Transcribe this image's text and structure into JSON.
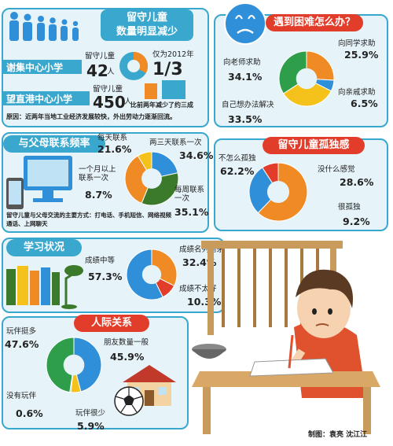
{
  "colors": {
    "blue": "#2f8fd8",
    "green": "#2f9e4a",
    "orange": "#f08a24",
    "red": "#e23d2a",
    "yellow": "#f5c21b",
    "darkgreen": "#3a7a2a",
    "panel": "#e6f3f9"
  },
  "section1": {
    "title_line1": "留守儿童",
    "title_line2": "数量明显减少",
    "school1": "谢集中心小学",
    "school1_label": "留守儿童",
    "school1_count": "42",
    "school1_unit": "人",
    "ratio_label": "仅为2012年",
    "ratio_value": "1/3",
    "school2": "望直港中心小学",
    "school2_label": "留守儿童",
    "school2_count": "450",
    "school2_unit": "人",
    "school2_note": "比前两年减少了约三成",
    "reason": "原因：近两年当地工业经济发展较快，外出劳动力逐渐回流。"
  },
  "chart_data": [
    {
      "type": "pie",
      "title": "遇到困难怎么办？",
      "labels": [
        "向同学求助",
        "向亲戚求助",
        "自己想办法解决",
        "向老师求助"
      ],
      "values": [
        25.9,
        6.5,
        33.5,
        34.1
      ]
    },
    {
      "type": "pie",
      "title": "与父母联系频率",
      "labels": [
        "每天联系",
        "两三天联系一次",
        "每周联系一次",
        "一个月以上联系一次"
      ],
      "values": [
        21.6,
        34.6,
        35.1,
        8.7
      ],
      "note": "留守儿童与父母交流的主要方式：打电话、手机短信、网络视频通话、上网聊天"
    },
    {
      "type": "pie",
      "title": "留守儿童孤独感",
      "labels": [
        "不怎么孤独",
        "没什么感觉",
        "很孤独"
      ],
      "values": [
        62.2,
        28.6,
        9.2
      ]
    },
    {
      "type": "pie",
      "title": "学习状况",
      "labels": [
        "成绩名列前茅",
        "成绩不太好",
        "成绩中等"
      ],
      "values": [
        32.4,
        10.3,
        57.3
      ]
    },
    {
      "type": "pie",
      "title": "人际关系",
      "labels": [
        "朋友数量一般",
        "玩伴很少",
        "没有玩伴",
        "玩伴挺多"
      ],
      "values": [
        45.9,
        5.9,
        0.6,
        47.6
      ]
    }
  ],
  "credit": "制图：袁亮  沈江江"
}
